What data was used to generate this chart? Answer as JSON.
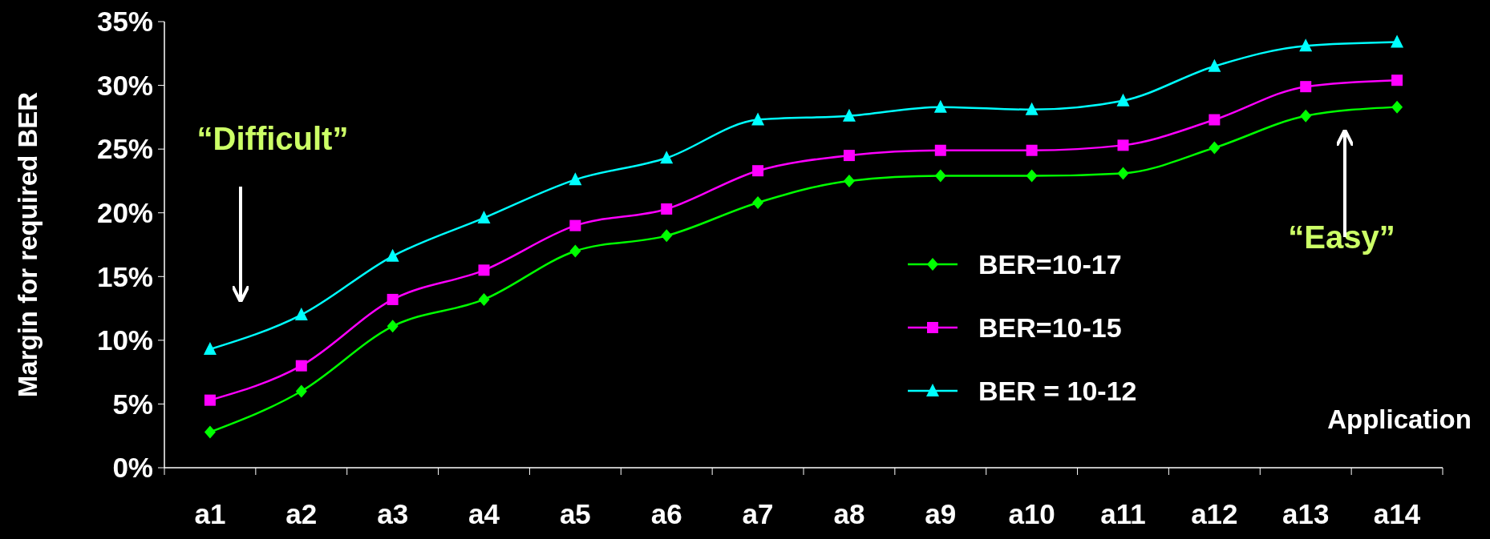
{
  "chart_data": {
    "type": "line",
    "xlabel": "Application",
    "ylabel": "Margin for required BER",
    "categories": [
      "a1",
      "a2",
      "a3",
      "a4",
      "a5",
      "a6",
      "a7",
      "a8",
      "a9",
      "a10",
      "a11",
      "a12",
      "a13",
      "a14"
    ],
    "series": [
      {
        "name": "BER=10-17",
        "color": "#00ff00",
        "marker": "diamond",
        "values": [
          2.8,
          6.0,
          11.1,
          13.2,
          17.0,
          18.2,
          20.8,
          22.5,
          22.9,
          22.9,
          23.1,
          25.1,
          27.6,
          28.3
        ]
      },
      {
        "name": "BER=10-15",
        "color": "#ff00ff",
        "marker": "square",
        "values": [
          5.3,
          8.0,
          13.2,
          15.5,
          19.0,
          20.3,
          23.3,
          24.5,
          24.9,
          24.9,
          25.3,
          27.3,
          29.9,
          30.4
        ]
      },
      {
        "name": "BER = 10-12",
        "color": "#00ffff",
        "marker": "triangle",
        "values": [
          9.3,
          12.0,
          16.6,
          19.6,
          22.6,
          24.3,
          27.3,
          27.6,
          28.3,
          28.1,
          28.8,
          31.5,
          33.1,
          33.4
        ]
      }
    ],
    "ylim": [
      0,
      35
    ],
    "yticks": [
      {
        "value": 0,
        "label": "0%"
      },
      {
        "value": 5,
        "label": "5%"
      },
      {
        "value": 10,
        "label": "10%"
      },
      {
        "value": 15,
        "label": "15%"
      },
      {
        "value": 20,
        "label": "20%"
      },
      {
        "value": 25,
        "label": "25%"
      },
      {
        "value": 30,
        "label": "30%"
      },
      {
        "value": 35,
        "label": "35%"
      }
    ],
    "grid": false,
    "legend": "right",
    "annotations": [
      "“Difficult”",
      "“Easy”"
    ]
  }
}
